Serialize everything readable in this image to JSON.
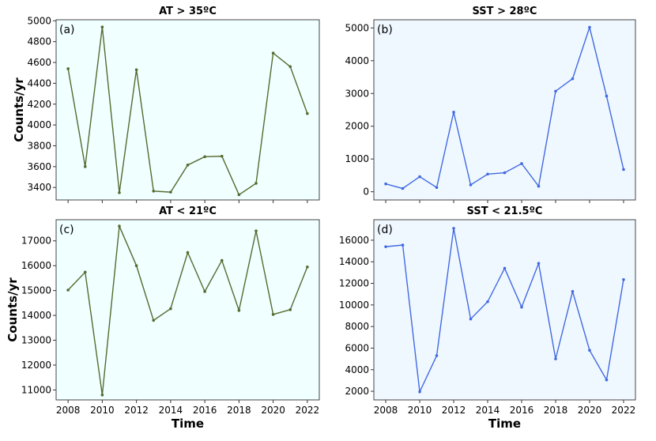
{
  "chart_data": [
    {
      "type": "line",
      "panel": "(a)",
      "title": "AT > 35ºC",
      "xlabel": "",
      "ylabel": "Counts/yr",
      "x": [
        2008,
        2009,
        2010,
        2011,
        2012,
        2013,
        2014,
        2015,
        2016,
        2017,
        2018,
        2019,
        2020,
        2021,
        2022
      ],
      "values": [
        4540,
        3600,
        4940,
        3350,
        4530,
        3365,
        3355,
        3615,
        3695,
        3700,
        3330,
        3440,
        4690,
        4560,
        4110
      ],
      "yticks": [
        3400,
        3600,
        3800,
        4000,
        4200,
        4400,
        4600,
        4800,
        5000
      ],
      "ylim": [
        3280,
        5010
      ],
      "xlim": [
        2007.3,
        2022.7
      ],
      "xticks": [],
      "color": "#556b2f",
      "background": "#f0ffff",
      "grid": false
    },
    {
      "type": "line",
      "panel": "(b)",
      "title": "SST > 28ºC",
      "xlabel": "",
      "ylabel": "",
      "x": [
        2008,
        2009,
        2010,
        2011,
        2012,
        2013,
        2014,
        2015,
        2016,
        2017,
        2018,
        2019,
        2020,
        2021,
        2022
      ],
      "values": [
        240,
        100,
        460,
        130,
        2430,
        210,
        540,
        580,
        860,
        170,
        3070,
        3450,
        5020,
        2920,
        680
      ],
      "yticks": [
        0,
        1000,
        2000,
        3000,
        4000,
        5000
      ],
      "ylim": [
        -250,
        5250
      ],
      "xlim": [
        2007.3,
        2022.7
      ],
      "xticks": [],
      "color": "#4169e1",
      "background": "#f0f8ff",
      "grid": false
    },
    {
      "type": "line",
      "panel": "(c)",
      "title": "AT < 21ºC",
      "xlabel": "Time",
      "ylabel": "Counts/yr",
      "x": [
        2008,
        2009,
        2010,
        2011,
        2012,
        2013,
        2014,
        2015,
        2016,
        2017,
        2018,
        2019,
        2020,
        2021,
        2022
      ],
      "values": [
        15020,
        15740,
        10800,
        17590,
        16000,
        13800,
        14270,
        16530,
        14960,
        16210,
        14200,
        17400,
        14040,
        14230,
        15950
      ],
      "yticks": [
        11000,
        12000,
        13000,
        14000,
        15000,
        16000,
        17000
      ],
      "ylim": [
        10600,
        17850
      ],
      "xlim": [
        2007.3,
        2022.7
      ],
      "xticks": [
        "2008",
        "2010",
        "2012",
        "2014",
        "2016",
        "2018",
        "2020",
        "2022"
      ],
      "color": "#556b2f",
      "background": "#f0ffff",
      "grid": false
    },
    {
      "type": "line",
      "panel": "(d)",
      "title": "SST < 21.5ºC",
      "xlabel": "Time",
      "ylabel": "",
      "x": [
        2008,
        2009,
        2010,
        2011,
        2012,
        2013,
        2014,
        2015,
        2016,
        2017,
        2018,
        2019,
        2020,
        2021,
        2022
      ],
      "values": [
        15400,
        15550,
        1950,
        5300,
        17100,
        8700,
        10300,
        13400,
        9800,
        13850,
        5000,
        11250,
        5800,
        3050,
        12350
      ],
      "yticks": [
        2000,
        4000,
        6000,
        8000,
        10000,
        12000,
        14000,
        16000
      ],
      "ylim": [
        1200,
        17900
      ],
      "xlim": [
        2007.3,
        2022.7
      ],
      "xticks": [
        "2008",
        "2010",
        "2012",
        "2014",
        "2016",
        "2018",
        "2020",
        "2022"
      ],
      "color": "#4169e1",
      "background": "#f0f8ff",
      "grid": false
    }
  ]
}
